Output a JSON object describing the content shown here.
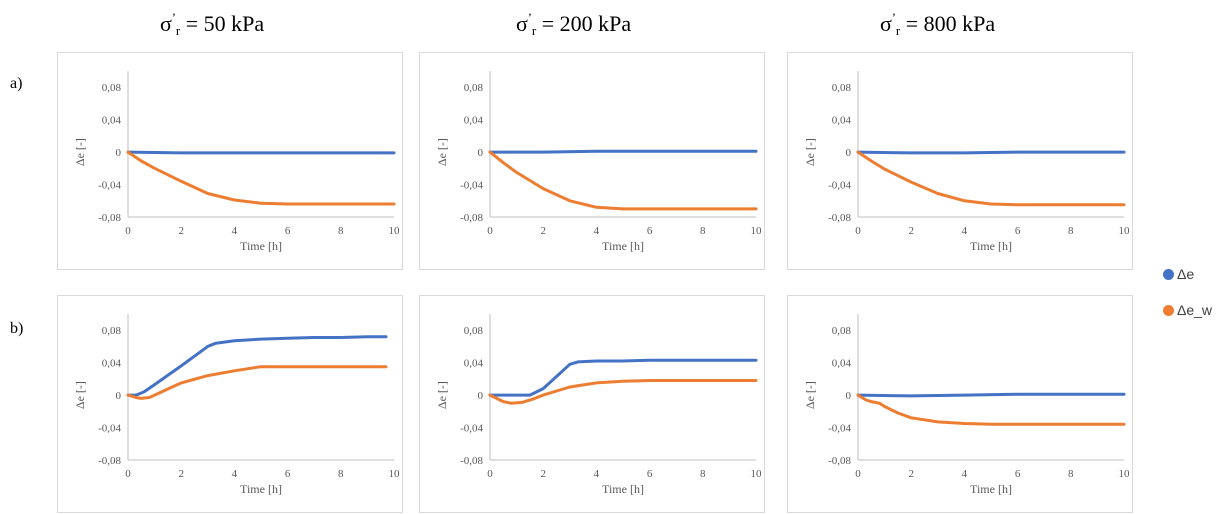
{
  "column_titles": [
    {
      "sigma": "σ",
      "prime": "’",
      "sub": "r",
      "value": " = 50 kPa"
    },
    {
      "sigma": "σ",
      "prime": "’",
      "sub": "r",
      "value": " = 200 kPa"
    },
    {
      "sigma": "σ",
      "prime": "’",
      "sub": "r",
      "value": " = 800 kPa"
    }
  ],
  "row_labels": [
    "a)",
    "b)"
  ],
  "legend": [
    {
      "label": "Δe",
      "color": "#4472C4"
    },
    {
      "label": "Δe_w",
      "color": "#ED7D31"
    }
  ],
  "chart_data": [
    {
      "type": "line",
      "row": "a)",
      "column": "σ’r = 50 kPa",
      "xlabel": "Time [h]",
      "ylabel": "Δe [-]",
      "xlim": [
        0,
        10
      ],
      "ylim": [
        -0.08,
        0.1
      ],
      "xticks": [
        "0",
        "2",
        "4",
        "6",
        "8",
        "10"
      ],
      "yticks": [
        "0,08",
        "0,04",
        "0",
        "-0,04",
        "-0,08"
      ],
      "series": [
        {
          "name": "Δe",
          "color": "#4472C4",
          "x": [
            0,
            2,
            4,
            6,
            8,
            10
          ],
          "y": [
            0,
            -0.001,
            -0.001,
            -0.001,
            -0.001,
            -0.001
          ]
        },
        {
          "name": "Δe_w",
          "color": "#ED7D31",
          "x": [
            0,
            0.5,
            1,
            2,
            3,
            4,
            5,
            6,
            7,
            8,
            9,
            10
          ],
          "y": [
            0,
            -0.011,
            -0.02,
            -0.036,
            -0.051,
            -0.059,
            -0.063,
            -0.064,
            -0.064,
            -0.064,
            -0.064,
            -0.064
          ]
        }
      ]
    },
    {
      "type": "line",
      "row": "a)",
      "column": "σ’r = 200 kPa",
      "xlabel": "Time [h]",
      "ylabel": "Δe [-]",
      "xlim": [
        0,
        10
      ],
      "ylim": [
        -0.08,
        0.1
      ],
      "xticks": [
        "0",
        "2",
        "4",
        "6",
        "8",
        "10"
      ],
      "yticks": [
        "0,08",
        "0,04",
        "0",
        "-0,04",
        "-0,08"
      ],
      "series": [
        {
          "name": "Δe",
          "color": "#4472C4",
          "x": [
            0,
            2,
            4,
            6,
            8,
            10
          ],
          "y": [
            0,
            0,
            0.001,
            0.001,
            0.001,
            0.001
          ]
        },
        {
          "name": "Δe_w",
          "color": "#ED7D31",
          "x": [
            0,
            0.5,
            1,
            2,
            3,
            4,
            5,
            6,
            7,
            8,
            9,
            10
          ],
          "y": [
            0,
            -0.013,
            -0.025,
            -0.045,
            -0.06,
            -0.068,
            -0.07,
            -0.07,
            -0.07,
            -0.07,
            -0.07,
            -0.07
          ]
        }
      ]
    },
    {
      "type": "line",
      "row": "a)",
      "column": "σ’r = 800 kPa",
      "xlabel": "Time [h]",
      "ylabel": "Δe [-]",
      "xlim": [
        0,
        10
      ],
      "ylim": [
        -0.08,
        0.1
      ],
      "xticks": [
        "0",
        "2",
        "4",
        "6",
        "8",
        "10"
      ],
      "yticks": [
        "0,08",
        "0,04",
        "0",
        "-0,04",
        "-0,08"
      ],
      "series": [
        {
          "name": "Δe",
          "color": "#4472C4",
          "x": [
            0,
            2,
            4,
            6,
            8,
            10
          ],
          "y": [
            0,
            -0.001,
            -0.001,
            0,
            0,
            0
          ]
        },
        {
          "name": "Δe_w",
          "color": "#ED7D31",
          "x": [
            0,
            0.5,
            1,
            2,
            3,
            4,
            5,
            6,
            7,
            8,
            9,
            10
          ],
          "y": [
            0,
            -0.011,
            -0.021,
            -0.037,
            -0.051,
            -0.06,
            -0.064,
            -0.065,
            -0.065,
            -0.065,
            -0.065,
            -0.065
          ]
        }
      ]
    },
    {
      "type": "line",
      "row": "b)",
      "column": "σ’r = 50 kPa",
      "xlabel": "Time [h]",
      "ylabel": "Δe [-]",
      "xlim": [
        0,
        10
      ],
      "ylim": [
        -0.08,
        0.1
      ],
      "xticks": [
        "0",
        "2",
        "4",
        "6",
        "8",
        "10"
      ],
      "yticks": [
        "0,08",
        "0,04",
        "0",
        "-0,04",
        "-0,08"
      ],
      "series": [
        {
          "name": "Δe",
          "color": "#4472C4",
          "x": [
            0,
            0.3,
            0.6,
            1,
            2,
            3,
            3.3,
            4,
            5,
            6,
            7,
            8,
            9,
            9.7
          ],
          "y": [
            0,
            0,
            0.004,
            0.013,
            0.036,
            0.06,
            0.064,
            0.067,
            0.069,
            0.07,
            0.071,
            0.071,
            0.072,
            0.072
          ]
        },
        {
          "name": "Δe_w",
          "color": "#ED7D31",
          "x": [
            0,
            0.3,
            0.5,
            0.8,
            1,
            2,
            3,
            4,
            5,
            5.5,
            6,
            7,
            8,
            9,
            9.7
          ],
          "y": [
            0,
            -0.003,
            -0.004,
            -0.003,
            0,
            0.015,
            0.024,
            0.03,
            0.035,
            0.035,
            0.035,
            0.035,
            0.035,
            0.035,
            0.035
          ]
        }
      ]
    },
    {
      "type": "line",
      "row": "b)",
      "column": "σ’r = 200 kPa",
      "xlabel": "Time [h]",
      "ylabel": "Δe [-]",
      "xlim": [
        0,
        10
      ],
      "ylim": [
        -0.08,
        0.1
      ],
      "xticks": [
        "0",
        "2",
        "4",
        "6",
        "8",
        "10"
      ],
      "yticks": [
        "0,08",
        "0,04",
        "0",
        "-0,04",
        "-0,08"
      ],
      "series": [
        {
          "name": "Δe",
          "color": "#4472C4",
          "x": [
            0,
            1,
            1.5,
            2,
            2.5,
            3,
            3.3,
            4,
            5,
            6,
            7,
            8,
            9,
            10
          ],
          "y": [
            0,
            0,
            0,
            0.008,
            0.023,
            0.038,
            0.041,
            0.042,
            0.042,
            0.043,
            0.043,
            0.043,
            0.043,
            0.043
          ]
        },
        {
          "name": "Δe_w",
          "color": "#ED7D31",
          "x": [
            0,
            0.5,
            0.8,
            1.2,
            1.6,
            2,
            3,
            4,
            5,
            6,
            7,
            8,
            9,
            10
          ],
          "y": [
            0,
            -0.008,
            -0.01,
            -0.009,
            -0.005,
            0,
            0.01,
            0.015,
            0.017,
            0.018,
            0.018,
            0.018,
            0.018,
            0.018
          ]
        }
      ]
    },
    {
      "type": "line",
      "row": "b)",
      "column": "σ’r = 800 kPa",
      "xlabel": "Time [h]",
      "ylabel": "Δe [-]",
      "xlim": [
        0,
        10
      ],
      "ylim": [
        -0.08,
        0.1
      ],
      "xticks": [
        "0",
        "2",
        "4",
        "6",
        "8",
        "10"
      ],
      "yticks": [
        "0,08",
        "0,04",
        "0",
        "-0,04",
        "-0,08"
      ],
      "series": [
        {
          "name": "Δe",
          "color": "#4472C4",
          "x": [
            0,
            2,
            4,
            6,
            8,
            10
          ],
          "y": [
            0,
            -0.001,
            0,
            0.001,
            0.001,
            0.001
          ]
        },
        {
          "name": "Δe_w",
          "color": "#ED7D31",
          "x": [
            0,
            0.3,
            0.5,
            0.8,
            1,
            1.5,
            2,
            3,
            4,
            5,
            6,
            7,
            8,
            9,
            10
          ],
          "y": [
            0,
            -0.006,
            -0.008,
            -0.01,
            -0.014,
            -0.022,
            -0.028,
            -0.033,
            -0.035,
            -0.036,
            -0.036,
            -0.036,
            -0.036,
            -0.036,
            -0.036
          ]
        }
      ]
    }
  ]
}
